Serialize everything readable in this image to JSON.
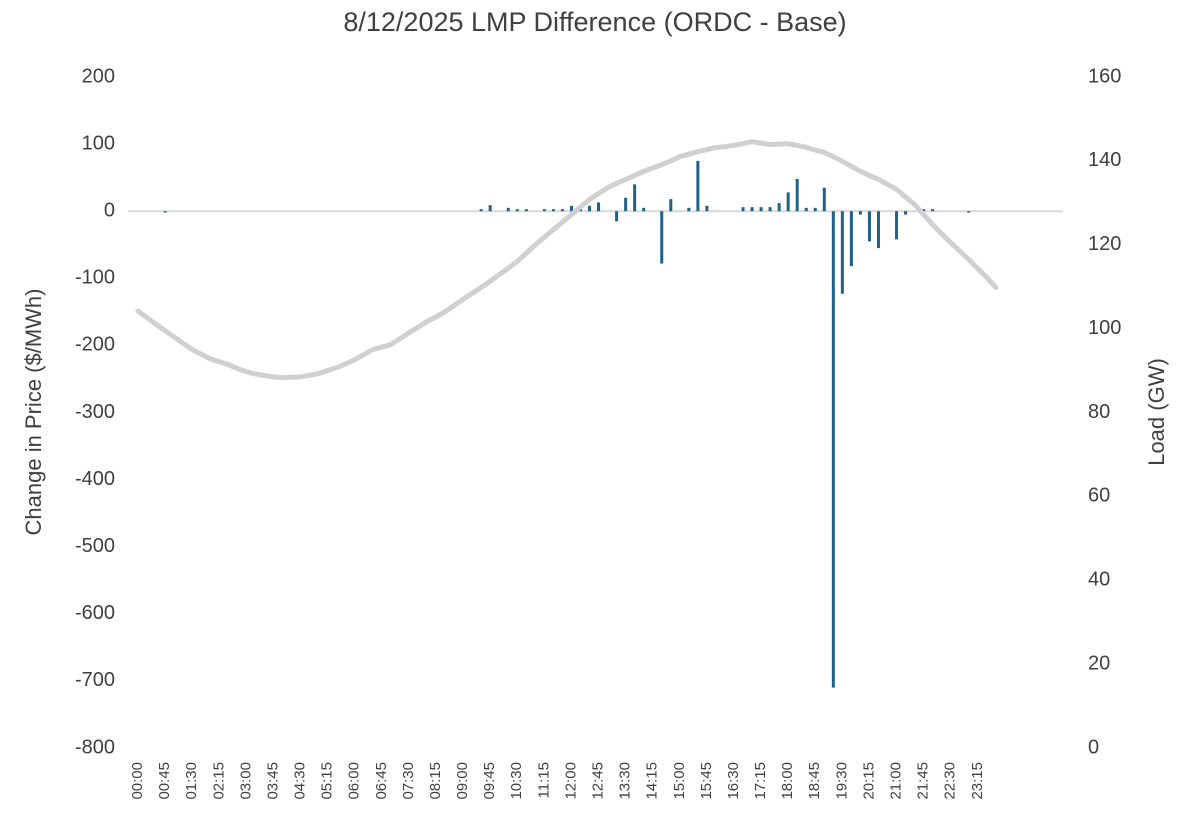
{
  "chart_data": {
    "type": "bar",
    "title": "8/12/2025  LMP Difference (ORDC - Base)",
    "y_label": "Change in Price ($/MWh)",
    "y2_label": "Load (GW)",
    "categories": [
      "00:00",
      null,
      null,
      "00:45",
      null,
      null,
      "01:30",
      null,
      null,
      "02:15",
      null,
      null,
      "03:00",
      null,
      null,
      "03:45",
      null,
      null,
      "04:30",
      null,
      null,
      "05:15",
      null,
      null,
      "06:00",
      null,
      null,
      "06:45",
      null,
      null,
      "07:30",
      null,
      null,
      "08:15",
      null,
      null,
      "09:00",
      null,
      null,
      "09:45",
      null,
      null,
      "10:30",
      null,
      null,
      "11:15",
      null,
      null,
      "12:00",
      null,
      null,
      "12:45",
      null,
      null,
      "13:30",
      null,
      null,
      "14:15",
      null,
      null,
      "15:00",
      null,
      null,
      "15:45",
      null,
      null,
      "16:30",
      null,
      null,
      "17:15",
      null,
      null,
      "18:00",
      null,
      null,
      "18:45",
      null,
      null,
      "19:30",
      null,
      null,
      "20:15",
      null,
      null,
      "21:00",
      null,
      null,
      "21:45",
      null,
      null,
      "22:30",
      null,
      null,
      "23:15",
      null,
      null
    ],
    "series": [
      {
        "type": "bar",
        "color": "#1f6189",
        "values": [
          0,
          0,
          0,
          -2,
          0,
          0,
          0,
          0,
          0,
          0,
          0,
          0,
          0,
          0,
          0,
          0,
          0,
          0,
          0,
          0,
          0,
          0,
          0,
          0,
          0,
          0,
          0,
          0,
          0,
          0,
          0,
          0,
          0,
          0,
          0,
          0,
          0,
          0,
          3,
          9,
          0,
          5,
          3,
          3,
          0,
          3,
          3,
          3,
          8,
          3,
          8,
          13,
          0,
          -15,
          20,
          40,
          5,
          0,
          -78,
          18,
          0,
          5,
          75,
          8,
          0,
          0,
          0,
          6,
          6,
          6,
          6,
          12,
          28,
          48,
          5,
          5,
          35,
          -710,
          -123,
          -82,
          -5,
          -45,
          -55,
          0,
          -42,
          -5,
          0,
          3,
          3,
          0,
          0,
          0,
          -2,
          0,
          0,
          0
        ]
      },
      {
        "type": "line",
        "axis": "y2",
        "color": "#d0d0d0",
        "values": [
          104.2,
          102.6,
          101,
          99.5,
          98,
          96.5,
          95,
          93.9,
          92.8,
          92.1,
          91.4,
          90.5,
          89.7,
          89.2,
          88.8,
          88.5,
          88.3,
          88.4,
          88.5,
          88.9,
          89.3,
          90,
          90.7,
          91.6,
          92.6,
          93.8,
          95,
          95.6,
          96.2,
          97.6,
          99,
          100.3,
          101.7,
          102.8,
          104,
          105.5,
          107,
          108.4,
          109.8,
          111.3,
          112.9,
          114.4,
          116,
          118,
          120,
          121.8,
          123.6,
          125.4,
          127.2,
          129,
          130.8,
          132.2,
          133.6,
          134.6,
          135.6,
          136.5,
          137.5,
          138.3,
          139.1,
          140,
          141,
          141.6,
          142.2,
          142.7,
          143.2,
          143.4,
          143.7,
          144.1,
          144.6,
          144.2,
          143.9,
          144,
          144.1,
          143.7,
          143.2,
          142.6,
          142,
          141,
          139.9,
          138.7,
          137.5,
          136.5,
          135.6,
          134.4,
          133.2,
          131.4,
          129.6,
          127.2,
          124.8,
          122.6,
          120.5,
          118.5,
          116.5,
          114.3,
          112.2,
          109.8
        ]
      }
    ],
    "ylim": [
      -800,
      200
    ],
    "yticks": [
      -800,
      -700,
      -600,
      -500,
      -400,
      -300,
      -200,
      -100,
      0,
      100,
      200
    ],
    "y2lim": [
      0,
      160
    ],
    "y2ticks": [
      0,
      20,
      40,
      60,
      80,
      100,
      120,
      140,
      160
    ],
    "grid": false
  }
}
